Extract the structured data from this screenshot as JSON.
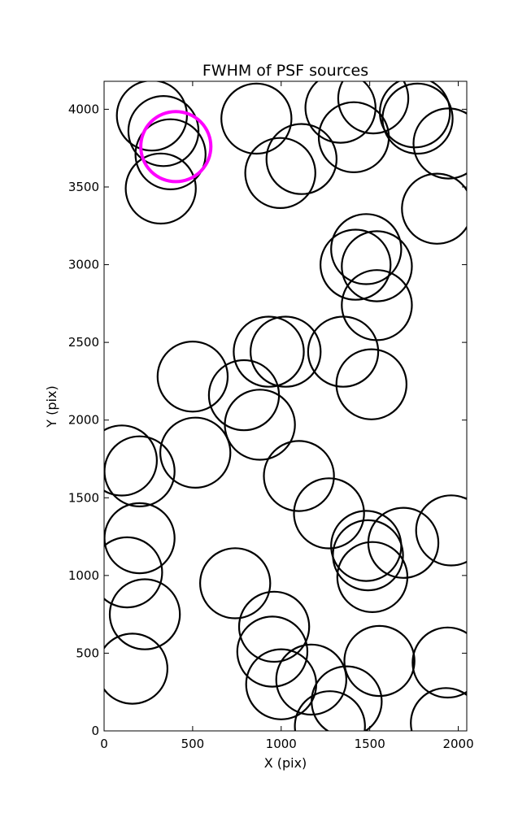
{
  "chart_data": {
    "type": "scatter",
    "title": "FWHM of PSF sources",
    "xlabel": "X (pix)",
    "ylabel": "Y (pix)",
    "xlim": [
      0,
      2048
    ],
    "ylim": [
      0,
      4180
    ],
    "xticks": [
      0,
      500,
      1000,
      1500,
      2000
    ],
    "yticks": [
      0,
      500,
      1000,
      1500,
      2000,
      2500,
      3000,
      3500,
      4000
    ],
    "grid": false,
    "marker": "open circle",
    "circle_radius_data": 198,
    "colors": {
      "normal": "#000000",
      "highlight": "#ff00ff"
    },
    "sources": [
      {
        "x": 270,
        "y": 3960
      },
      {
        "x": 335,
        "y": 3860
      },
      {
        "x": 375,
        "y": 3710
      },
      {
        "x": 320,
        "y": 3490
      },
      {
        "x": 860,
        "y": 3940
      },
      {
        "x": 995,
        "y": 3590
      },
      {
        "x": 1115,
        "y": 3680
      },
      {
        "x": 1335,
        "y": 4010
      },
      {
        "x": 1410,
        "y": 3820
      },
      {
        "x": 1520,
        "y": 4070
      },
      {
        "x": 1755,
        "y": 3980
      },
      {
        "x": 1770,
        "y": 3940
      },
      {
        "x": 1945,
        "y": 3780
      },
      {
        "x": 1880,
        "y": 3360
      },
      {
        "x": 1480,
        "y": 3100
      },
      {
        "x": 1420,
        "y": 3000
      },
      {
        "x": 1540,
        "y": 2990
      },
      {
        "x": 1540,
        "y": 2740
      },
      {
        "x": 500,
        "y": 2280
      },
      {
        "x": 790,
        "y": 2160
      },
      {
        "x": 930,
        "y": 2440
      },
      {
        "x": 1025,
        "y": 2440
      },
      {
        "x": 1350,
        "y": 2440
      },
      {
        "x": 1510,
        "y": 2230
      },
      {
        "x": 880,
        "y": 1970
      },
      {
        "x": 100,
        "y": 1740
      },
      {
        "x": 200,
        "y": 1670
      },
      {
        "x": 515,
        "y": 1790
      },
      {
        "x": 1100,
        "y": 1640
      },
      {
        "x": 1270,
        "y": 1400
      },
      {
        "x": 200,
        "y": 1240
      },
      {
        "x": 130,
        "y": 1020
      },
      {
        "x": 230,
        "y": 750
      },
      {
        "x": 160,
        "y": 400
      },
      {
        "x": 740,
        "y": 950
      },
      {
        "x": 960,
        "y": 670
      },
      {
        "x": 950,
        "y": 510
      },
      {
        "x": 1000,
        "y": 300
      },
      {
        "x": 1170,
        "y": 330
      },
      {
        "x": 1370,
        "y": 190
      },
      {
        "x": 1275,
        "y": 30
      },
      {
        "x": 1480,
        "y": 1190
      },
      {
        "x": 1490,
        "y": 1130
      },
      {
        "x": 1515,
        "y": 990
      },
      {
        "x": 1690,
        "y": 1210
      },
      {
        "x": 1960,
        "y": 1290
      },
      {
        "x": 1555,
        "y": 450
      },
      {
        "x": 1940,
        "y": 440
      },
      {
        "x": 1930,
        "y": 50
      },
      {
        "x": 405,
        "y": 3760,
        "highlight": true
      }
    ]
  }
}
